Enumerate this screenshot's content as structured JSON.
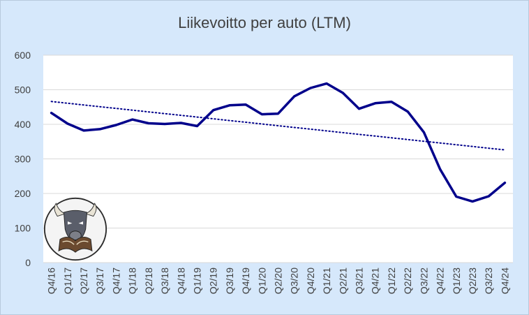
{
  "chart_data": {
    "type": "line",
    "title": "Liikevoitto per auto (LTM)",
    "xlabel": "",
    "ylabel": "",
    "ylim": [
      0,
      600
    ],
    "yticks": [
      0,
      100,
      200,
      300,
      400,
      500,
      600
    ],
    "grid": true,
    "legend": "none",
    "categories": [
      "Q4/16",
      "Q1/17",
      "Q2/17",
      "Q3/17",
      "Q4/17",
      "Q1/18",
      "Q2/18",
      "Q3/18",
      "Q4/18",
      "Q1/19",
      "Q2/19",
      "Q3/19",
      "Q4/19",
      "Q1/20",
      "Q2/20",
      "Q3/20",
      "Q4/20",
      "Q1/21",
      "Q2/21",
      "Q3/21",
      "Q4/21",
      "Q1/22",
      "Q2/22",
      "Q3/22",
      "Q4/22",
      "Q1/23",
      "Q2/23",
      "Q3/23",
      "Q4/24"
    ],
    "series": [
      {
        "values": [
          433,
          402,
          382,
          386,
          398,
          414,
          403,
          401,
          404,
          395,
          441,
          455,
          457,
          429,
          431,
          481,
          505,
          518,
          491,
          445,
          461,
          465,
          437,
          377,
          270,
          191,
          177,
          192,
          231
        ],
        "color": "#00008b",
        "style": "solid"
      },
      {
        "trend": "linear",
        "values": [
          466,
          461,
          456,
          451,
          446,
          441,
          436,
          431,
          426,
          421,
          416,
          411,
          406,
          401,
          396,
          391,
          386,
          381,
          376,
          371,
          366,
          361,
          356,
          351,
          346,
          341,
          336,
          331,
          326
        ],
        "color": "#00008b",
        "style": "dotted"
      }
    ]
  },
  "logo": {
    "icon": "bull-reading-book-logo"
  },
  "colors": {
    "background": "#d6e8fb",
    "plot_area": "#ffffff",
    "grid": "#d9d9d9",
    "line": "#00008b"
  }
}
